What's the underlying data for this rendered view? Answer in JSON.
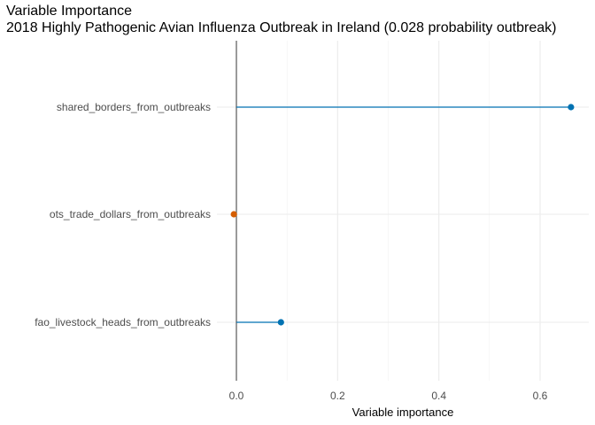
{
  "chart_data": {
    "type": "lollipop",
    "title": "Variable Importance",
    "subtitle": "2018 Highly Pathogenic Avian Influenza Outbreak in Ireland (0.028 probability outbreak)",
    "xlabel": "Variable importance",
    "ylabel": "",
    "xlim": [
      -0.04,
      0.69
    ],
    "x_ticks": [
      "0.0",
      "0.2",
      "0.4",
      "0.6"
    ],
    "x_tick_values": [
      0.0,
      0.2,
      0.4,
      0.6
    ],
    "grid": true,
    "legend": "none",
    "categories": [
      "shared_borders_from_outbreaks",
      "ots_trade_dollars_from_outbreaks",
      "fao_livestock_heads_from_outbreaks"
    ],
    "values": [
      0.661,
      -0.005,
      0.088
    ],
    "colors": [
      "#0072B2",
      "#D55E00",
      "#0072B2"
    ]
  }
}
